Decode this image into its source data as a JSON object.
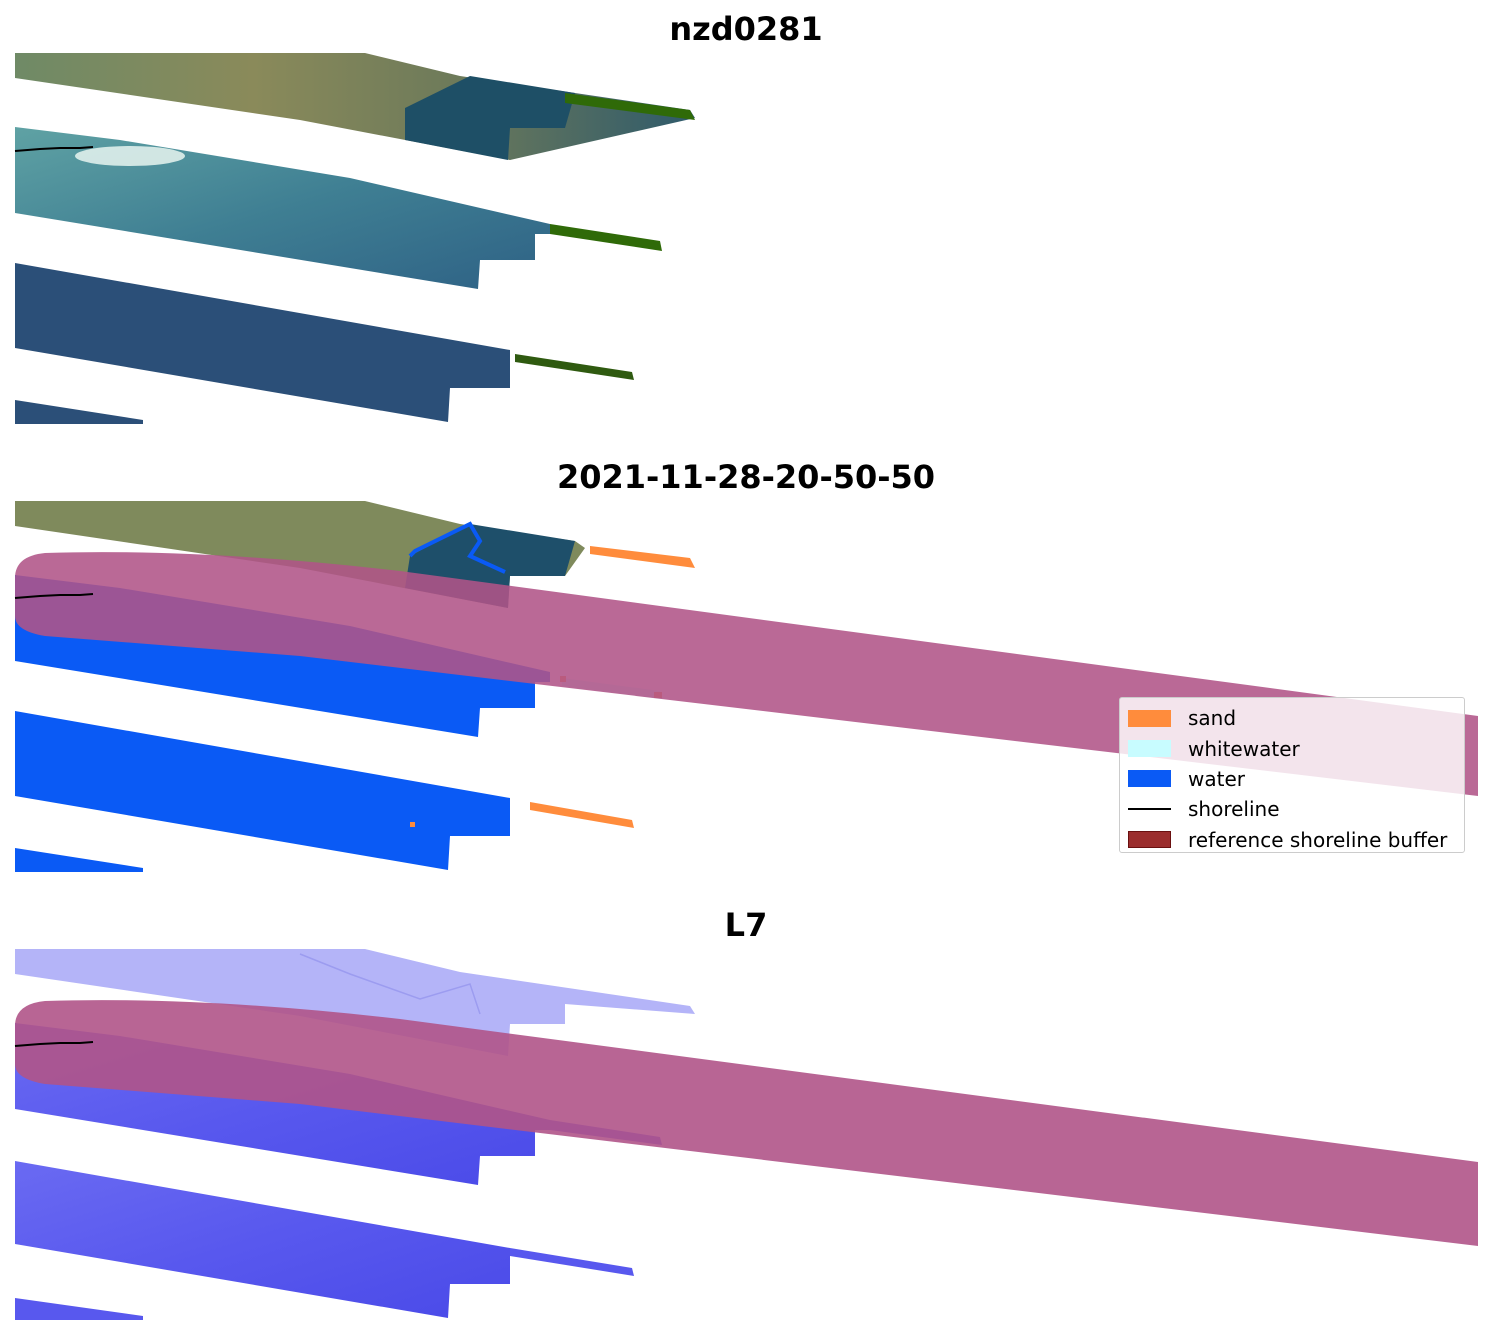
{
  "panels": [
    {
      "title": "nzd0281"
    },
    {
      "title": "2021-11-28-20-50-50"
    },
    {
      "title": "L7"
    }
  ],
  "legend": {
    "items": [
      {
        "label": "sand",
        "type": "patch",
        "color": "#ff8c3c"
      },
      {
        "label": "whitewater",
        "type": "patch",
        "color": "#c8fcff"
      },
      {
        "label": "water",
        "type": "patch",
        "color": "#0a5af5"
      },
      {
        "label": "shoreline",
        "type": "line",
        "color": "#000000"
      },
      {
        "label": "reference shoreline buffer",
        "type": "patch",
        "color": "#9b2d2d"
      }
    ]
  },
  "colors": {
    "satellite_land": "#7a8a5c",
    "satellite_water": "#2b5477",
    "vegetation": "#2e6b0a",
    "water_class": "#0a5af5",
    "sand_class": "#ff8c3c",
    "index_light": "#b4b4f8",
    "index_dark": "#5a5af0",
    "buffer": "#b05488"
  }
}
